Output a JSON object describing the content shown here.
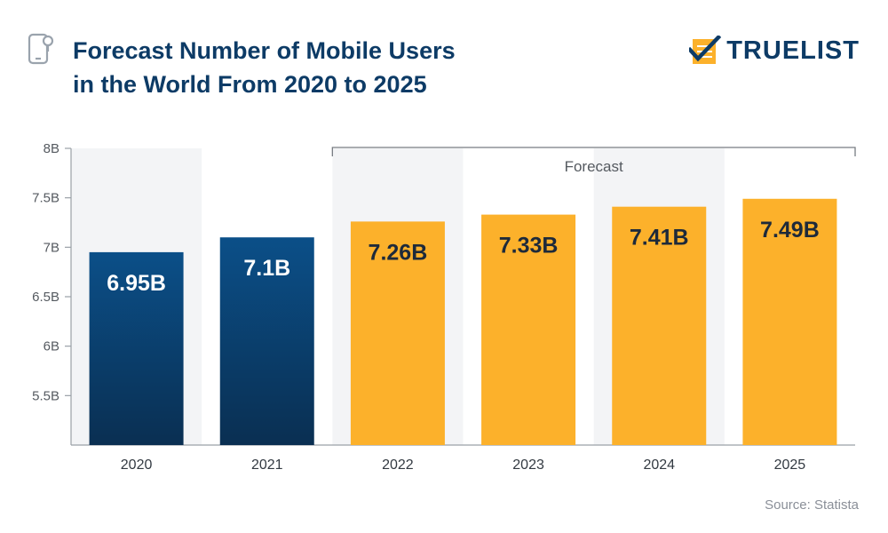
{
  "header": {
    "title_line1": "Forecast Number of Mobile Users",
    "title_line2": "in the World From 2020 to 2025",
    "logo_text": "TRUELIST"
  },
  "footer": {
    "source": "Source: Statista"
  },
  "colors": {
    "actual_top": "#0b4f88",
    "actual_bottom": "#0a2f52",
    "forecast": "#fcb12b",
    "band": "#f3f4f6",
    "title": "#0d3b66",
    "axis_text": "#555a60"
  },
  "chart_data": {
    "type": "bar",
    "title": "Forecast Number of Mobile Users in the World From 2020 to 2025",
    "categories": [
      "2020",
      "2021",
      "2022",
      "2023",
      "2024",
      "2025"
    ],
    "values": [
      6.95,
      7.1,
      7.26,
      7.33,
      7.41,
      7.49
    ],
    "value_labels": [
      "6.95B",
      "7.1B",
      "7.26B",
      "7.33B",
      "7.41B",
      "7.49B"
    ],
    "forecast": [
      false,
      false,
      true,
      true,
      true,
      true
    ],
    "ylim": [
      5,
      8
    ],
    "yticks": [
      5.5,
      6,
      6.5,
      7,
      7.5,
      8
    ],
    "ytick_labels": [
      "5.5B",
      "6B",
      "6.5B",
      "7B",
      "7.5B",
      "8B"
    ],
    "forecast_label": "Forecast",
    "xlabel": "",
    "ylabel": "",
    "grid": false
  }
}
